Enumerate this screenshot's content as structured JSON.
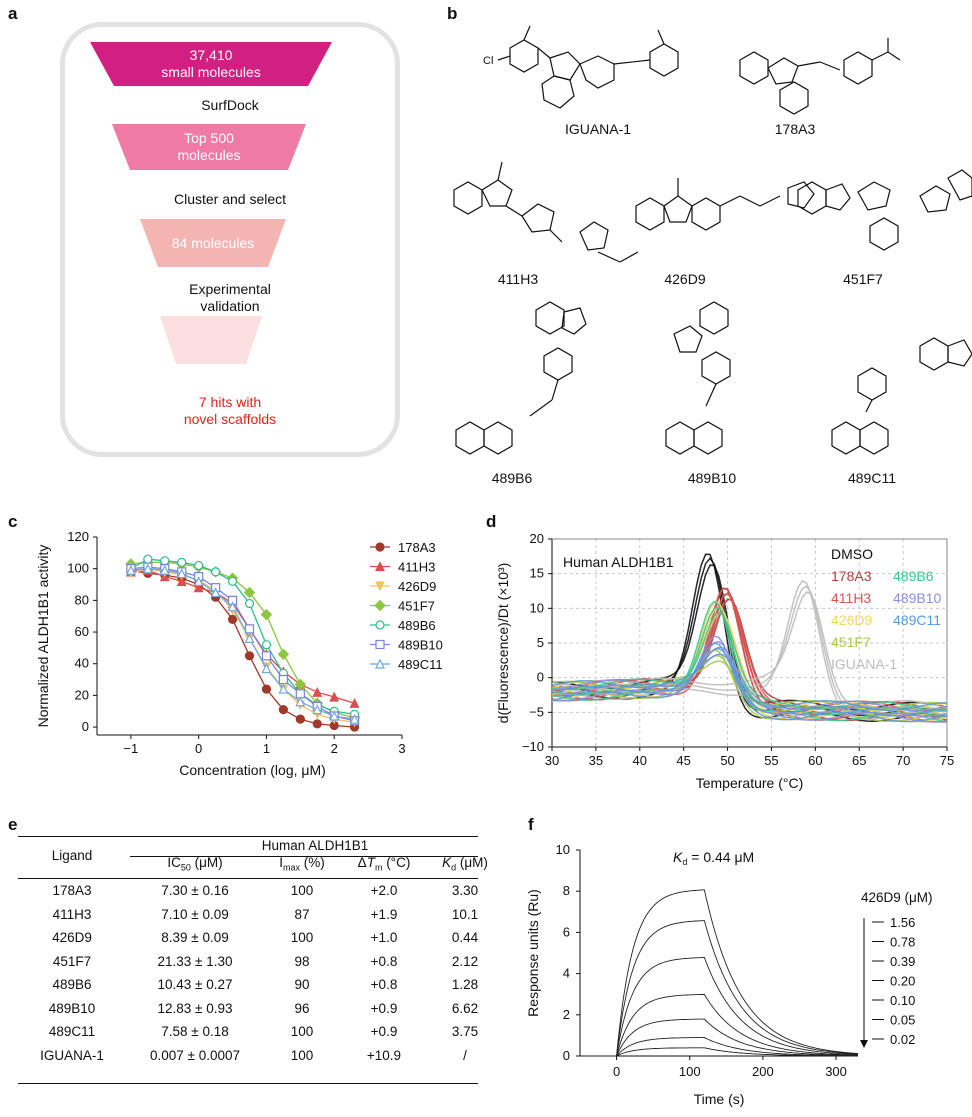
{
  "panels": {
    "a": "a",
    "b": "b",
    "c": "c",
    "d": "d",
    "e": "e",
    "f": "f"
  },
  "funnel": {
    "tiers": [
      {
        "text": "37,410\nsmall molecules",
        "color": "#d21f82"
      },
      {
        "text": "Top 500\nmolecules",
        "color": "#ef7ba4"
      },
      {
        "text": "84 molecules",
        "color": "#f4b4b2"
      },
      {
        "text": "",
        "color": "#fbdede"
      }
    ],
    "steps": [
      "SurfDock",
      "Cluster and select",
      "Experimental\nvalidation"
    ],
    "hits": "7 hits with\nnovel scaffolds"
  },
  "compounds": [
    "IGUANA-1",
    "178A3",
    "411H3",
    "426D9",
    "451F7",
    "489B6",
    "489B10",
    "489C11"
  ],
  "panel_c": {
    "chart_data": {
      "type": "line",
      "xlabel": "Concentration (log, μM)",
      "ylabel": "Normalized ALDH1B1 activity",
      "xlim": [
        -1.5,
        3
      ],
      "ylim": [
        -5,
        120
      ],
      "xticks": [
        "−1",
        "0",
        "1",
        "2",
        "3"
      ],
      "yticks": [
        "0",
        "20",
        "40",
        "60",
        "80",
        "100",
        "120"
      ],
      "legend_position": "right",
      "x": [
        -1,
        -0.75,
        -0.5,
        -0.25,
        0,
        0.25,
        0.5,
        0.75,
        1,
        1.25,
        1.5,
        1.75,
        2,
        2.3
      ],
      "series": [
        {
          "name": "178A3",
          "color": "#a0392b",
          "marker": "circle-filled",
          "values": [
            99,
            97,
            96,
            94,
            90,
            82,
            68,
            45,
            24,
            11,
            5,
            2,
            1,
            0
          ]
        },
        {
          "name": "411H3",
          "color": "#d94e4e",
          "marker": "triangle-filled",
          "values": [
            98,
            99,
            95,
            92,
            88,
            85,
            78,
            62,
            46,
            35,
            27,
            22,
            19,
            15
          ]
        },
        {
          "name": "426D9",
          "color": "#f2c25b",
          "marker": "triangle-down-filled",
          "values": [
            97,
            100,
            98,
            96,
            93,
            86,
            74,
            56,
            38,
            24,
            14,
            8,
            5,
            3
          ]
        },
        {
          "name": "451F7",
          "color": "#8cc63f",
          "marker": "diamond-filled",
          "values": [
            103,
            104,
            104,
            103,
            101,
            98,
            94,
            85,
            71,
            46,
            27,
            15,
            9,
            6
          ]
        },
        {
          "name": "489B6",
          "color": "#2dbf8b",
          "marker": "circle-open",
          "values": [
            100,
            106,
            105,
            104,
            102,
            98,
            92,
            78,
            52,
            34,
            21,
            14,
            10,
            8
          ]
        },
        {
          "name": "489B10",
          "color": "#7b83d8",
          "marker": "square-open",
          "values": [
            100,
            101,
            100,
            98,
            95,
            88,
            80,
            62,
            45,
            30,
            21,
            13,
            7,
            4
          ]
        },
        {
          "name": "489C11",
          "color": "#6fa8dc",
          "marker": "triangle-open",
          "values": [
            99,
            100,
            99,
            97,
            92,
            85,
            76,
            56,
            37,
            24,
            16,
            11,
            7,
            5
          ]
        }
      ]
    }
  },
  "panel_d": {
    "chart_data": {
      "type": "line",
      "title": "Human ALDH1B1",
      "xlabel": "Temperature (°C)",
      "ylabel": "d(Fluorescence)/Dt (×10³)",
      "xlim": [
        30,
        75
      ],
      "ylim": [
        -10,
        20
      ],
      "xticks": [
        "30",
        "35",
        "40",
        "45",
        "50",
        "55",
        "60",
        "65",
        "70",
        "75"
      ],
      "yticks": [
        "−10",
        "−5",
        "0",
        "5",
        "10",
        "15",
        "20"
      ],
      "grid": true,
      "legend_position": "top-right",
      "series": [
        {
          "name": "DMSO",
          "color": "#111111",
          "tm": 48,
          "peak": 18
        },
        {
          "name": "178A3",
          "color": "#b5413d",
          "tm": 50,
          "peak": 13
        },
        {
          "name": "411H3",
          "color": "#d9534f",
          "tm": 49.9,
          "peak": 13
        },
        {
          "name": "426D9",
          "color": "#f5d36b",
          "tm": 49,
          "peak": 11
        },
        {
          "name": "451F7",
          "color": "#a6c84a",
          "tm": 48.8,
          "peak": 4
        },
        {
          "name": "IGUANA-1",
          "color": "#bdbdbd",
          "tm": 58.9,
          "peak": 14
        },
        {
          "name": "489B6",
          "color": "#3cc88f",
          "tm": 48.8,
          "peak": 11
        },
        {
          "name": "489B10",
          "color": "#8a8fe0",
          "tm": 48.9,
          "peak": 6
        },
        {
          "name": "489C11",
          "color": "#5b9bd5",
          "tm": 48.9,
          "peak": 5
        }
      ]
    }
  },
  "panel_e": {
    "header_group": "Human ALDH1B1",
    "columns": [
      "Ligand",
      "IC50 (μM)",
      "Imax (%)",
      "ΔTm (°C)",
      "Kd (μM)"
    ],
    "rows": [
      [
        "178A3",
        "7.30 ± 0.16",
        "100",
        "+2.0",
        "3.30"
      ],
      [
        "411H3",
        "7.10 ± 0.09",
        "87",
        "+1.9",
        "10.1"
      ],
      [
        "426D9",
        "8.39 ± 0.09",
        "100",
        "+1.0",
        "0.44"
      ],
      [
        "451F7",
        "21.33 ± 1.30",
        "98",
        "+0.8",
        "2.12"
      ],
      [
        "489B6",
        "10.43 ± 0.27",
        "90",
        "+0.8",
        "1.28"
      ],
      [
        "489B10",
        "12.83 ± 0.93",
        "96",
        "+0.9",
        "6.62"
      ],
      [
        "489C11",
        "7.58 ± 0.18",
        "100",
        "+0.9",
        "3.75"
      ],
      [
        "IGUANA-1",
        "0.007 ± 0.0007",
        "100",
        "+10.9",
        "/"
      ]
    ]
  },
  "panel_f": {
    "chart_data": {
      "type": "line",
      "annotation": "Kd = 0.44 μM",
      "xlabel": "Time (s)",
      "ylabel": "Response units (Ru)",
      "xlim": [
        -50,
        330
      ],
      "ylim": [
        0,
        10
      ],
      "xticks": [
        "0",
        "100",
        "200",
        "300"
      ],
      "yticks": [
        "0",
        "2",
        "4",
        "6",
        "8",
        "10"
      ],
      "legend_title": "426D9 (μM)",
      "legend_position": "right",
      "series": [
        {
          "name": "1.56",
          "plateau": 8.1
        },
        {
          "name": "0.78",
          "plateau": 6.6
        },
        {
          "name": "0.39",
          "plateau": 4.8
        },
        {
          "name": "0.20",
          "plateau": 3.0
        },
        {
          "name": "0.10",
          "plateau": 1.8
        },
        {
          "name": "0.05",
          "plateau": 0.9
        },
        {
          "name": "0.02",
          "plateau": 0.4
        }
      ]
    }
  }
}
